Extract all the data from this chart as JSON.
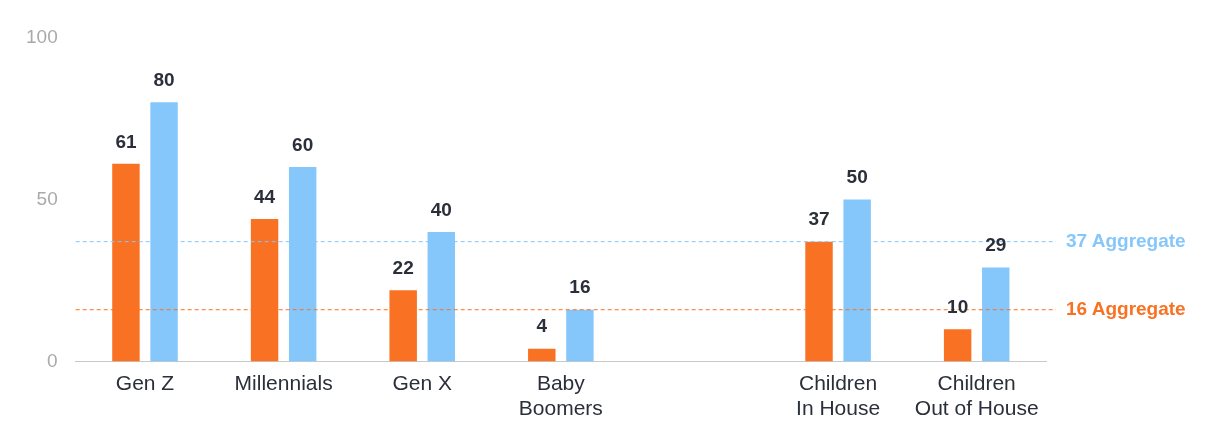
{
  "chart_data": {
    "type": "bar",
    "categories": [
      "Gen Z",
      "Millennials",
      "Gen X",
      "Baby Boomers",
      null,
      "Children In House",
      "Children Out of House"
    ],
    "series": [
      {
        "color": "#f97122",
        "values": [
          61,
          44,
          22,
          4,
          null,
          37,
          10
        ]
      },
      {
        "color": "#85c7fb",
        "values": [
          80,
          60,
          40,
          16,
          null,
          50,
          29
        ]
      }
    ],
    "ylim": [
      0,
      100
    ],
    "yticks": [
      0,
      50,
      100
    ],
    "grid": false,
    "legend": false,
    "data_labels": true,
    "ref_lines": [
      {
        "axis": "y",
        "value": 37,
        "label": "37 Aggregate",
        "color": "#85c7fb",
        "line_style": "dashed"
      },
      {
        "axis": "y",
        "value": 16,
        "label": "16 Aggregate",
        "color": "#f97122",
        "line_style": "dashed"
      }
    ]
  }
}
